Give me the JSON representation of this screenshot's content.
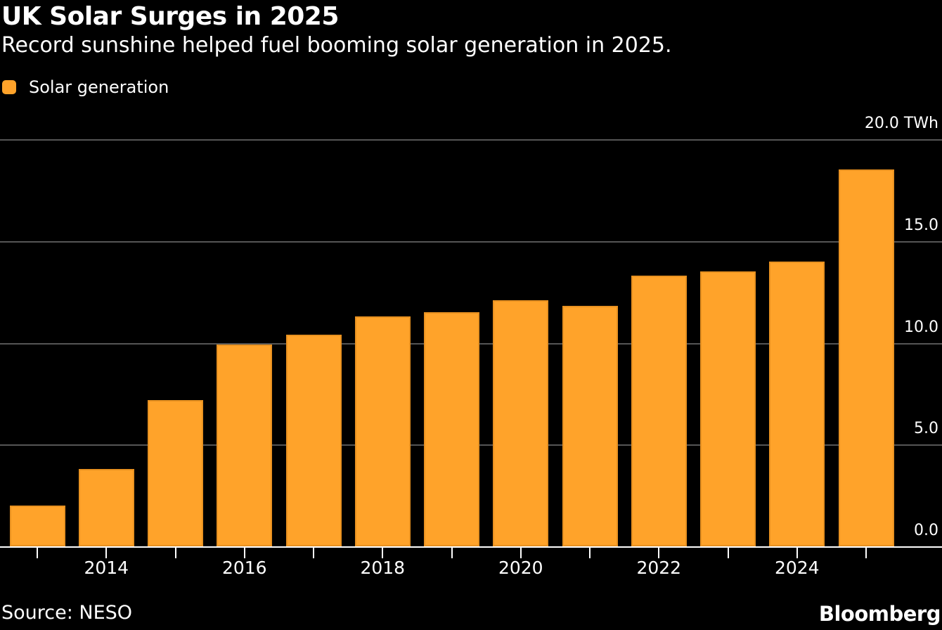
{
  "header": {
    "title": "UK Solar Surges in 2025",
    "subtitle": "Record sunshine helped fuel booming solar generation in 2025."
  },
  "legend": {
    "items": [
      {
        "label": "Solar generation",
        "color": "#ffa32a"
      }
    ]
  },
  "chart_data": {
    "type": "bar",
    "title": "UK Solar Surges in 2025",
    "subtitle": "Record sunshine helped fuel booming solar generation in 2025.",
    "series_name": "Solar generation",
    "unit": "TWh",
    "categories": [
      "2013",
      "2014",
      "2015",
      "2016",
      "2017",
      "2018",
      "2019",
      "2020",
      "2021",
      "2022",
      "2023",
      "2024",
      "2025"
    ],
    "values": [
      2.0,
      3.8,
      7.2,
      9.9,
      10.4,
      11.3,
      11.5,
      12.1,
      11.8,
      13.3,
      13.5,
      14.0,
      18.5
    ],
    "ylim": [
      0,
      20
    ],
    "yticks": [
      {
        "value": 20,
        "label": "20.0 TWh"
      },
      {
        "value": 15,
        "label": "15.0"
      },
      {
        "value": 10,
        "label": "10.0"
      },
      {
        "value": 5,
        "label": "5.0"
      },
      {
        "value": 0,
        "label": "0.0"
      }
    ],
    "xticks_labeled": [
      "2014",
      "2016",
      "2018",
      "2020",
      "2022",
      "2024"
    ],
    "grid": "horizontal",
    "legend_position": "top-left",
    "colors": {
      "bar": "#ffa32a",
      "bar_edge": "#d8861a",
      "background": "#000000",
      "gridline": "#555555",
      "axis_line": "#ffffff",
      "text": "#ffffff"
    }
  },
  "footer": {
    "source": "Source: NESO",
    "brand": "Bloomberg"
  }
}
